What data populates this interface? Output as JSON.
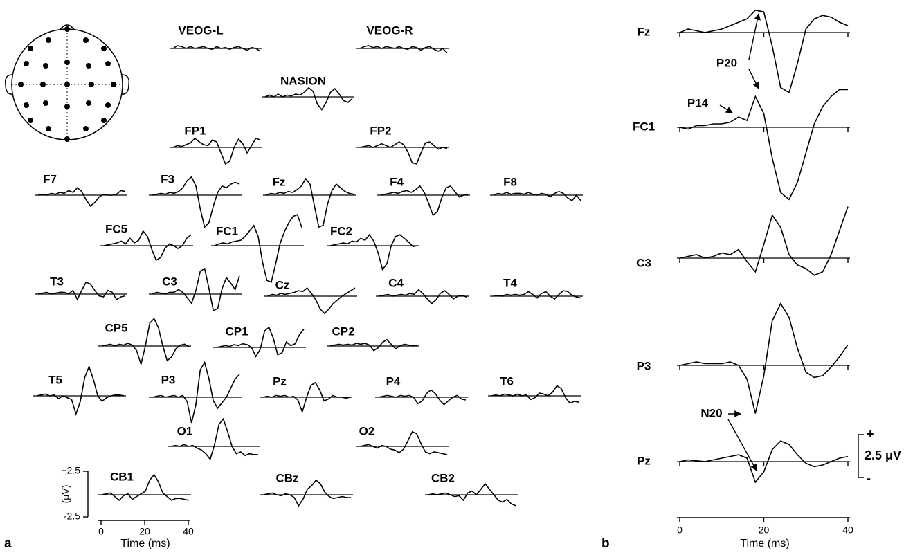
{
  "chart_data": [
    {
      "type": "line",
      "panel": "a",
      "xlabel": "Time (ms)",
      "ylabel": "(μV)",
      "color": "#000000",
      "x": [
        0,
        2,
        4,
        6,
        8,
        10,
        12,
        14,
        16,
        18,
        20,
        22,
        24,
        26,
        28,
        30,
        32,
        34,
        36,
        38,
        40
      ],
      "xlim": [
        0,
        40
      ],
      "xticks": [
        0,
        20,
        40
      ],
      "ylim": [
        -2.5,
        2.5
      ],
      "yticks": [
        {
          "value": 2.5,
          "label": "+2.5"
        },
        {
          "value": -2.5,
          "label": "-2.5"
        }
      ],
      "series": [
        {
          "name": "VEOG-L",
          "values": [
            0,
            0.3,
            0.2,
            0,
            0.2,
            0,
            0.1,
            0.2,
            0,
            -0.1,
            0.2,
            0,
            0.1,
            -0.1,
            0.1,
            0.2,
            0,
            -0.2,
            0.1,
            0,
            -0.3
          ]
        },
        {
          "name": "VEOG-R",
          "values": [
            0,
            0.2,
            0.3,
            0.1,
            0.2,
            0,
            0.2,
            0.1,
            0,
            0.2,
            0,
            -0.1,
            0.2,
            0.1,
            -0.2,
            0.1,
            0.2,
            -0.1,
            -0.3,
            0,
            -0.5
          ]
        },
        {
          "name": "NASION",
          "values": [
            0,
            0.2,
            0,
            0.3,
            0,
            0.2,
            0.1,
            0.3,
            0.2,
            0.5,
            1.0,
            0.6,
            -0.8,
            -1.4,
            -0.6,
            0.5,
            0.9,
            0.3,
            -0.4,
            -0.6,
            -0.2
          ]
        },
        {
          "name": "FP1",
          "values": [
            0,
            0.2,
            0.1,
            0.3,
            0.5,
            1.0,
            0.6,
            0.3,
            0.2,
            0.8,
            0.6,
            -0.6,
            -1.8,
            -1.5,
            0,
            0.9,
            0.4,
            -0.6,
            0.2,
            1.0,
            0.8
          ]
        },
        {
          "name": "FP2",
          "values": [
            0,
            0.1,
            0.2,
            0,
            0.2,
            0.4,
            0.2,
            0,
            0.3,
            0.6,
            0.3,
            -0.5,
            -1.7,
            -1.8,
            -0.6,
            0.5,
            0.6,
            0.2,
            -0.2,
            0,
            -0.1
          ]
        },
        {
          "name": "F7",
          "values": [
            0,
            0.1,
            0,
            0.2,
            0.1,
            0.3,
            0.2,
            0.5,
            0.3,
            0.8,
            0.4,
            -0.5,
            -1.2,
            -0.8,
            -0.2,
            0.1,
            0,
            0,
            0.1,
            0.5,
            0.4
          ]
        },
        {
          "name": "F3",
          "values": [
            0,
            0.1,
            0.2,
            0.1,
            0.3,
            0.2,
            0.4,
            0.8,
            1.6,
            2.0,
            1.0,
            -1.5,
            -3.5,
            -3.0,
            -1.2,
            0.3,
            1.0,
            0.8,
            1.2,
            1.4,
            1.2
          ]
        },
        {
          "name": "Fz",
          "values": [
            0,
            0.2,
            0.1,
            0.3,
            0.2,
            0.4,
            0.3,
            0.6,
            1.0,
            1.8,
            1.2,
            -1.2,
            -3.5,
            -3.3,
            -1.0,
            0.5,
            1.2,
            0.8,
            0.4,
            0.2,
            0.1
          ]
        },
        {
          "name": "F4",
          "values": [
            0,
            0.1,
            0.2,
            0.3,
            0.2,
            0.4,
            0.5,
            0.3,
            0.6,
            1.0,
            0.3,
            -0.9,
            -2.2,
            -1.8,
            -0.3,
            0.8,
            1.0,
            0.4,
            -0.2,
            0,
            0.1
          ]
        },
        {
          "name": "F8",
          "values": [
            0,
            0.2,
            0.1,
            0.3,
            0.1,
            0.2,
            0.2,
            0.1,
            0.3,
            0.1,
            0,
            0.2,
            0.1,
            -0.2,
            0.2,
            0.4,
            0.2,
            -0.3,
            -0.6,
            0,
            -0.6
          ]
        },
        {
          "name": "FC5",
          "values": [
            0,
            0.1,
            0.2,
            0.3,
            0.5,
            0.2,
            0.8,
            0.3,
            0.6,
            1.6,
            1.0,
            -0.4,
            -1.6,
            -1.3,
            -0.3,
            0.2,
            0,
            -0.3,
            0,
            0.8,
            1.2
          ]
        },
        {
          "name": "FC1",
          "values": [
            0,
            0.2,
            0.3,
            0.2,
            0.4,
            0.5,
            0.6,
            1.0,
            1.6,
            2.2,
            1.0,
            -1.8,
            -3.8,
            -4.0,
            -2.0,
            0.2,
            1.5,
            2.5,
            3.2,
            3.4,
            2.0
          ]
        },
        {
          "name": "FC2",
          "values": [
            0,
            0.1,
            0.2,
            0.3,
            0.2,
            0.5,
            0.4,
            0.8,
            0.6,
            1.2,
            0.5,
            -0.8,
            -2.6,
            -2.0,
            0,
            1.0,
            1.2,
            0.8,
            0.4,
            -0.1,
            0
          ]
        },
        {
          "name": "T3",
          "values": [
            0,
            0.1,
            0.2,
            0,
            0.1,
            0.2,
            0.2,
            0,
            0.4,
            -0.6,
            0.4,
            1.3,
            1.1,
            0.4,
            -0.2,
            -0.3,
            0.4,
            0.2,
            -0.6,
            -0.3,
            -0.2
          ]
        },
        {
          "name": "C3",
          "values": [
            0,
            0.2,
            0.1,
            0,
            0.2,
            0.2,
            0.5,
            0.2,
            -0.4,
            -1.0,
            0.4,
            2.5,
            2.8,
            0.6,
            -1.8,
            -1.6,
            0.6,
            1.8,
            1.2,
            0.5,
            2.0
          ]
        },
        {
          "name": "Cz",
          "values": [
            0,
            0.2,
            0.1,
            0.3,
            0.2,
            0.3,
            0.4,
            0.6,
            0.5,
            0.9,
            0.3,
            -0.4,
            -1.4,
            -1.9,
            -1.4,
            -0.8,
            -0.4,
            0,
            0.3,
            0.6,
            0.9
          ]
        },
        {
          "name": "C4",
          "values": [
            0,
            0.1,
            0.2,
            0,
            0.1,
            0.2,
            0.1,
            0.3,
            0.2,
            0.7,
            0.3,
            -0.3,
            -0.8,
            -0.4,
            0.3,
            0.6,
            0.2,
            -0.3,
            0,
            0.1,
            -0.1
          ]
        },
        {
          "name": "T4",
          "values": [
            0,
            0.1,
            0,
            0.2,
            0.1,
            0.2,
            0.1,
            0.2,
            0.5,
            0.2,
            -0.2,
            0.3,
            0.5,
            0,
            -0.3,
            0.2,
            0.6,
            0.5,
            0.1,
            -0.1,
            -0.2
          ]
        },
        {
          "name": "CP5",
          "values": [
            0,
            0.1,
            0.2,
            0,
            0.2,
            0.1,
            0.3,
            0.1,
            -0.5,
            -2.0,
            0,
            2.5,
            3.0,
            2.0,
            0,
            -1.6,
            -1.2,
            -0.3,
            0.1,
            0.2,
            -0.1
          ]
        },
        {
          "name": "CP1",
          "values": [
            0,
            0.1,
            0.2,
            0.1,
            0.3,
            0.2,
            0.4,
            0.3,
            0,
            -1.0,
            -0.2,
            1.8,
            2.2,
            1.0,
            -0.8,
            -0.6,
            0.6,
            0.2,
            0.4,
            1.4,
            2.0
          ]
        },
        {
          "name": "CP2",
          "values": [
            0,
            0.1,
            0.2,
            0.1,
            0.2,
            0.1,
            0.3,
            0.2,
            0.3,
            0.1,
            -0.5,
            -0.2,
            0.4,
            0.7,
            0.2,
            -0.3,
            0,
            0.2,
            0.1,
            0,
            0.1
          ]
        },
        {
          "name": "T5",
          "values": [
            0,
            0.1,
            0.2,
            0,
            0.1,
            -0.3,
            0,
            -0.2,
            -0.4,
            -2.0,
            -0.6,
            2.0,
            3.2,
            1.8,
            0,
            -0.6,
            -0.2,
            0,
            0.1,
            0.1,
            0
          ]
        },
        {
          "name": "P3",
          "values": [
            0,
            0.1,
            0.2,
            0,
            0.1,
            0.2,
            0,
            0.2,
            -0.5,
            -2.8,
            -0.8,
            3.0,
            3.8,
            2.0,
            -0.4,
            -1.2,
            -0.6,
            0,
            1.0,
            2.0,
            2.5
          ]
        },
        {
          "name": "Pz",
          "values": [
            0,
            0.1,
            0,
            0.2,
            0.1,
            0.2,
            0,
            0.1,
            -0.3,
            -1.6,
            0,
            1.3,
            1.6,
            0.8,
            -0.4,
            -0.2,
            0.2,
            0,
            0,
            -0.1,
            0
          ]
        },
        {
          "name": "P4",
          "values": [
            0,
            0.1,
            0.2,
            0.1,
            0,
            0.2,
            0.1,
            0.2,
            0,
            -0.7,
            -0.4,
            0.4,
            0.8,
            0.4,
            -0.3,
            -0.8,
            -0.4,
            0,
            0.2,
            -0.2,
            -0.3
          ]
        },
        {
          "name": "T6",
          "values": [
            0,
            0.1,
            0,
            0.2,
            0.1,
            0,
            0.2,
            0,
            0.1,
            -0.4,
            -0.2,
            0.3,
            0.2,
            0,
            0.4,
            1.1,
            0.8,
            -0.2,
            -0.8,
            -0.6,
            -0.7
          ]
        },
        {
          "name": "O1",
          "values": [
            0,
            0.1,
            0,
            0.2,
            0,
            0.1,
            -0.2,
            -0.4,
            -0.8,
            -1.4,
            0.2,
            2.4,
            3.0,
            1.6,
            0,
            -0.8,
            -0.6,
            -1.0,
            -0.8,
            -0.9,
            -0.9
          ]
        },
        {
          "name": "O2",
          "values": [
            0,
            0.1,
            0.2,
            0,
            -0.2,
            0.1,
            0,
            -0.3,
            -0.4,
            -0.7,
            -0.3,
            0.6,
            1.6,
            1.4,
            0.3,
            -0.6,
            -0.8,
            -0.6,
            -0.7,
            -0.8,
            -0.9
          ]
        },
        {
          "name": "CB1",
          "values": [
            0,
            0.1,
            0.2,
            -0.2,
            -0.6,
            -0.1,
            0.1,
            -0.5,
            -0.2,
            0.1,
            0.4,
            1.6,
            2.2,
            1.4,
            0.2,
            -0.2,
            -0.6,
            -0.4,
            -0.4,
            -0.5,
            -0.6
          ]
        },
        {
          "name": "CBz",
          "values": [
            0,
            0.1,
            0.2,
            0,
            -0.1,
            0.1,
            0,
            -0.3,
            -1.2,
            -0.5,
            0.6,
            1.0,
            1.6,
            1.2,
            0.3,
            -0.2,
            -0.4,
            -0.3,
            -0.2,
            -0.3,
            -0.3
          ]
        },
        {
          "name": "CB2",
          "values": [
            0,
            0.1,
            0,
            0.1,
            0.2,
            0,
            -0.2,
            -0.1,
            -0.6,
            0.2,
            0.4,
            0,
            0.6,
            1.2,
            0.6,
            0,
            -0.6,
            -0.8,
            -0.5,
            -1.0,
            -1.2
          ]
        }
      ]
    },
    {
      "type": "line",
      "panel": "b",
      "xlabel": "Time (ms)",
      "color": "#000000",
      "x": [
        0,
        2,
        4,
        6,
        8,
        10,
        12,
        14,
        16,
        18,
        20,
        22,
        24,
        26,
        28,
        30,
        32,
        34,
        36,
        38,
        40
      ],
      "xlim": [
        0,
        40
      ],
      "xticks": [
        0,
        20,
        40
      ],
      "scale_bar": {
        "value": 2.5,
        "label": "2.5 μV",
        "plus": "+",
        "minus": "-"
      },
      "annotations": [
        {
          "text": "P20"
        },
        {
          "text": "P14"
        },
        {
          "text": "N20"
        }
      ],
      "series": [
        {
          "name": "Fz",
          "values": [
            0,
            0.2,
            0.1,
            0,
            0.1,
            0.2,
            0.4,
            0.6,
            0.8,
            1.3,
            1.2,
            -0.8,
            -3.2,
            -3.5,
            -1.8,
            0.2,
            0.8,
            1.0,
            0.9,
            0.6,
            0.4
          ]
        },
        {
          "name": "FC1",
          "values": [
            0,
            -0.1,
            0.1,
            0.1,
            0.2,
            0.2,
            0.3,
            0.6,
            0.4,
            1.8,
            0.8,
            -1.8,
            -3.8,
            -4.2,
            -3.2,
            -1.5,
            0.2,
            1.2,
            1.8,
            2.2,
            2.2
          ]
        },
        {
          "name": "C3",
          "values": [
            0,
            0.1,
            0.2,
            0,
            0.1,
            0.3,
            0.2,
            0.5,
            -0.2,
            -0.8,
            0.8,
            2.5,
            1.8,
            0.2,
            -0.4,
            -0.6,
            -1.0,
            -0.8,
            0.2,
            1.6,
            3.0
          ]
        },
        {
          "name": "P3",
          "values": [
            0,
            0.1,
            0.2,
            0.1,
            0.1,
            0.1,
            0.2,
            0,
            -0.8,
            -2.8,
            -0.6,
            2.6,
            3.6,
            2.8,
            1.0,
            -0.4,
            -0.7,
            -0.6,
            -0.1,
            0.5,
            1.2
          ]
        },
        {
          "name": "Pz",
          "values": [
            0,
            0.1,
            0.05,
            0,
            0.1,
            0.2,
            0.3,
            0.4,
            0.2,
            -1.2,
            -0.6,
            0.7,
            1.2,
            1.0,
            0.4,
            -0.1,
            -0.3,
            -0.2,
            0,
            0.2,
            0.3
          ]
        }
      ]
    }
  ]
}
